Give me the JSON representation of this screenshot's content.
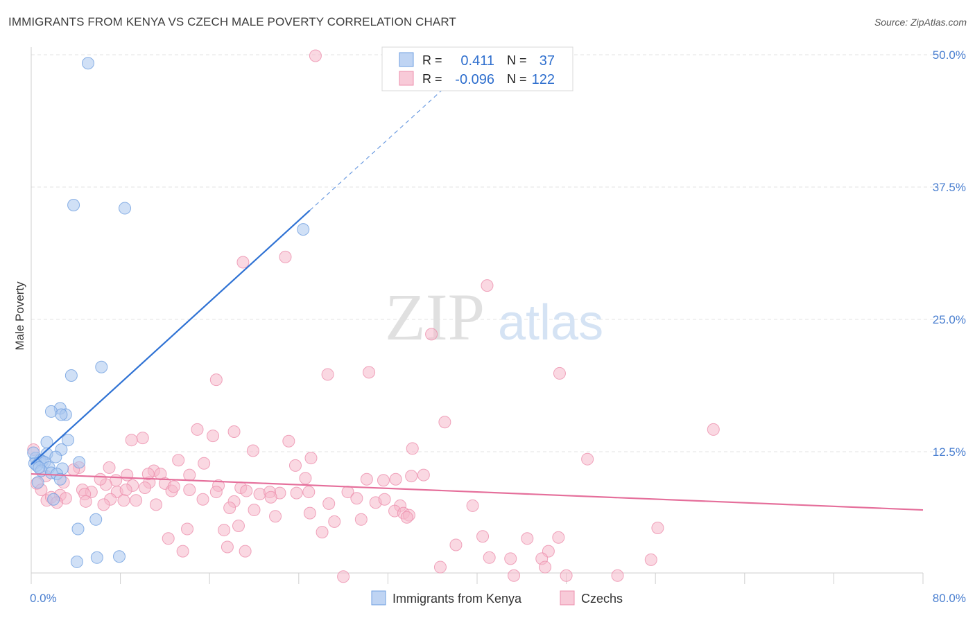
{
  "title": "IMMIGRANTS FROM KENYA VS CZECH MALE POVERTY CORRELATION CHART",
  "source": "Source: ZipAtlas.com",
  "watermark": {
    "zip": "ZIP",
    "atlas": "atlas"
  },
  "colors": {
    "kenya_fill": "#a9c6ef",
    "kenya_stroke": "#6f9fe0",
    "kenya_line": "#2f72d4",
    "czech_fill": "#f5b8cb",
    "czech_stroke": "#ec8fad",
    "czech_line": "#e56f9b",
    "tick_text": "#4a7fd0",
    "grid": "#e3e3e3"
  },
  "legend_stats": [
    {
      "r_label": "R =",
      "r_value": "0.411",
      "n_label": "N =",
      "n_value": "37"
    },
    {
      "r_label": "R =",
      "r_value": "-0.096",
      "n_label": "N =",
      "n_value": "122"
    }
  ],
  "chart_data": {
    "type": "scatter",
    "xlabel": "",
    "ylabel": "Male Poverty",
    "xlim": [
      0,
      80
    ],
    "ylim": [
      0,
      52
    ],
    "x_tick_labels": [
      "0.0%",
      "80.0%"
    ],
    "y_ticks": [
      12.5,
      25.0,
      37.5,
      50.0
    ],
    "y_tick_labels": [
      "12.5%",
      "25.0%",
      "37.5%",
      "50.0%"
    ],
    "grid": true,
    "legend_position": "bottom-center",
    "series": [
      {
        "name": "Immigrants from Kenya",
        "color": "#a9c6ef",
        "r": 0.411,
        "n": 37,
        "trend": {
          "x0": 0,
          "y0": 11.3,
          "x1": 25,
          "y1": 35.3,
          "dash_to_x": 37,
          "dash_to_y": 46.8
        },
        "points": [
          [
            5.1,
            49.2
          ],
          [
            3.8,
            35.8
          ],
          [
            8.4,
            35.5
          ],
          [
            24.4,
            33.5
          ],
          [
            6.3,
            20.5
          ],
          [
            3.6,
            19.7
          ],
          [
            2.6,
            16.6
          ],
          [
            1.8,
            16.3
          ],
          [
            3.1,
            16.0
          ],
          [
            2.7,
            16.0
          ],
          [
            3.3,
            13.6
          ],
          [
            1.4,
            13.4
          ],
          [
            2.7,
            12.7
          ],
          [
            1.4,
            12.3
          ],
          [
            2.2,
            12.0
          ],
          [
            0.4,
            11.9
          ],
          [
            0.8,
            11.7
          ],
          [
            1.0,
            11.6
          ],
          [
            1.2,
            11.5
          ],
          [
            4.3,
            11.5
          ],
          [
            0.3,
            11.4
          ],
          [
            0.5,
            11.2
          ],
          [
            1.6,
            11.0
          ],
          [
            2.8,
            10.9
          ],
          [
            0.9,
            10.7
          ],
          [
            1.8,
            10.5
          ],
          [
            2.3,
            10.4
          ],
          [
            2.6,
            9.9
          ],
          [
            0.6,
            9.6
          ],
          [
            2.0,
            8.0
          ],
          [
            5.8,
            6.1
          ],
          [
            4.2,
            5.2
          ],
          [
            7.9,
            2.6
          ],
          [
            5.9,
            2.5
          ],
          [
            4.1,
            2.1
          ],
          [
            0.2,
            12.4
          ],
          [
            0.7,
            11.0
          ]
        ]
      },
      {
        "name": "Czechs",
        "color": "#f5b8cb",
        "r": -0.096,
        "n": 122,
        "trend": {
          "x0": 0,
          "y0": 10.4,
          "x1": 80,
          "y1": 7.0
        },
        "points": [
          [
            25.5,
            49.9
          ],
          [
            19.0,
            30.4
          ],
          [
            22.8,
            30.9
          ],
          [
            40.9,
            28.2
          ],
          [
            35.9,
            23.6
          ],
          [
            16.6,
            19.3
          ],
          [
            26.6,
            19.8
          ],
          [
            30.3,
            20.0
          ],
          [
            47.4,
            19.9
          ],
          [
            37.1,
            15.3
          ],
          [
            61.2,
            14.6
          ],
          [
            14.9,
            14.6
          ],
          [
            18.2,
            14.4
          ],
          [
            16.3,
            14.0
          ],
          [
            10.0,
            13.8
          ],
          [
            9.0,
            13.6
          ],
          [
            23.1,
            13.5
          ],
          [
            34.2,
            12.8
          ],
          [
            19.9,
            12.6
          ],
          [
            49.9,
            11.8
          ],
          [
            13.2,
            11.7
          ],
          [
            15.5,
            11.4
          ],
          [
            25.1,
            11.9
          ],
          [
            23.7,
            11.2
          ],
          [
            7.0,
            11.0
          ],
          [
            4.3,
            11.0
          ],
          [
            11.0,
            10.7
          ],
          [
            11.6,
            10.4
          ],
          [
            14.2,
            10.3
          ],
          [
            8.6,
            10.3
          ],
          [
            24.6,
            10.0
          ],
          [
            34.1,
            10.2
          ],
          [
            30.1,
            9.9
          ],
          [
            31.6,
            9.8
          ],
          [
            7.6,
            9.8
          ],
          [
            6.7,
            9.4
          ],
          [
            10.6,
            9.6
          ],
          [
            12.0,
            9.5
          ],
          [
            9.1,
            9.3
          ],
          [
            0.5,
            9.5
          ],
          [
            2.9,
            9.6
          ],
          [
            16.8,
            9.3
          ],
          [
            18.8,
            9.1
          ],
          [
            10.2,
            9.1
          ],
          [
            19.3,
            8.8
          ],
          [
            22.3,
            8.6
          ],
          [
            4.6,
            8.9
          ],
          [
            5.4,
            8.7
          ],
          [
            7.7,
            8.7
          ],
          [
            8.5,
            8.9
          ],
          [
            12.6,
            8.8
          ],
          [
            14.2,
            8.9
          ],
          [
            16.6,
            8.7
          ],
          [
            20.5,
            8.5
          ],
          [
            21.4,
            8.7
          ],
          [
            23.8,
            8.6
          ],
          [
            28.4,
            8.7
          ],
          [
            0.9,
            8.9
          ],
          [
            2.6,
            8.4
          ],
          [
            4.8,
            8.5
          ],
          [
            3.1,
            8.1
          ],
          [
            1.4,
            7.9
          ],
          [
            1.8,
            8.2
          ],
          [
            2.3,
            7.7
          ],
          [
            4.9,
            7.8
          ],
          [
            7.1,
            8.0
          ],
          [
            8.3,
            7.9
          ],
          [
            9.4,
            7.9
          ],
          [
            11.2,
            7.5
          ],
          [
            15.4,
            8.0
          ],
          [
            18.2,
            7.8
          ],
          [
            21.5,
            8.2
          ],
          [
            26.7,
            7.6
          ],
          [
            29.2,
            8.1
          ],
          [
            30.9,
            7.7
          ],
          [
            31.7,
            8.0
          ],
          [
            33.1,
            7.4
          ],
          [
            39.6,
            7.4
          ],
          [
            17.8,
            7.2
          ],
          [
            20.0,
            7.0
          ],
          [
            25.0,
            6.7
          ],
          [
            32.6,
            6.9
          ],
          [
            33.4,
            6.7
          ],
          [
            33.9,
            6.5
          ],
          [
            21.9,
            6.4
          ],
          [
            27.2,
            5.9
          ],
          [
            29.6,
            6.1
          ],
          [
            33.7,
            6.3
          ],
          [
            18.6,
            5.5
          ],
          [
            14.0,
            5.2
          ],
          [
            17.3,
            5.1
          ],
          [
            26.1,
            4.9
          ],
          [
            56.2,
            5.3
          ],
          [
            12.3,
            4.3
          ],
          [
            40.5,
            4.5
          ],
          [
            44.5,
            4.3
          ],
          [
            47.3,
            4.4
          ],
          [
            17.6,
            3.5
          ],
          [
            38.1,
            3.7
          ],
          [
            13.6,
            3.1
          ],
          [
            19.2,
            3.1
          ],
          [
            46.4,
            3.1
          ],
          [
            41.1,
            2.5
          ],
          [
            43.0,
            2.4
          ],
          [
            45.8,
            2.4
          ],
          [
            55.6,
            2.3
          ],
          [
            36.7,
            1.6
          ],
          [
            46.1,
            1.6
          ],
          [
            43.3,
            0.8
          ],
          [
            48.0,
            0.8
          ],
          [
            52.6,
            0.8
          ],
          [
            28.0,
            0.7
          ],
          [
            0.2,
            12.7
          ],
          [
            1.3,
            10.2
          ],
          [
            35.2,
            10.3
          ],
          [
            24.9,
            8.7
          ],
          [
            32.7,
            9.9
          ],
          [
            6.5,
            7.5
          ],
          [
            3.8,
            10.8
          ],
          [
            6.2,
            9.9
          ],
          [
            12.8,
            9.2
          ],
          [
            10.5,
            10.4
          ]
        ]
      }
    ]
  }
}
